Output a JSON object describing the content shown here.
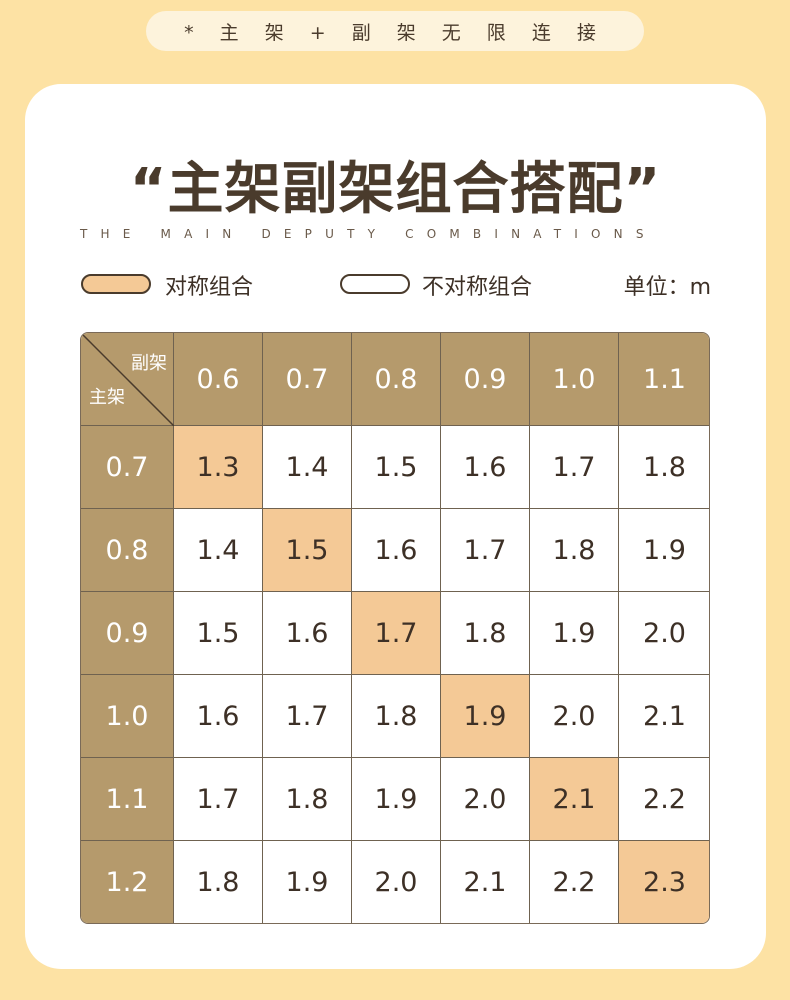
{
  "banner": {
    "text": "* 主 架 + 副 架 无 限 连 接"
  },
  "heading": {
    "title": "“主架副架组合搭配”",
    "subtitle": "THE MAIN DEPUTY COMBINATIONS"
  },
  "legend": {
    "symmetric_label": "对称组合",
    "asymmetric_label": "不对称组合",
    "unit_label": "单位：m",
    "symmetric_color": "#f4c996",
    "asymmetric_color": "#ffffff"
  },
  "table": {
    "corner_top": "副架",
    "corner_bottom": "主架",
    "columns": [
      "0.6",
      "0.7",
      "0.8",
      "0.9",
      "1.0",
      "1.1"
    ],
    "rows": [
      {
        "label": "0.7",
        "values": [
          "1.3",
          "1.4",
          "1.5",
          "1.6",
          "1.7",
          "1.8"
        ]
      },
      {
        "label": "0.8",
        "values": [
          "1.4",
          "1.5",
          "1.6",
          "1.7",
          "1.8",
          "1.9"
        ]
      },
      {
        "label": "0.9",
        "values": [
          "1.5",
          "1.6",
          "1.7",
          "1.8",
          "1.9",
          "2.0"
        ]
      },
      {
        "label": "1.0",
        "values": [
          "1.6",
          "1.7",
          "1.8",
          "1.9",
          "2.0",
          "2.1"
        ]
      },
      {
        "label": "1.1",
        "values": [
          "1.7",
          "1.8",
          "1.9",
          "2.0",
          "2.1",
          "2.2"
        ]
      },
      {
        "label": "1.2",
        "values": [
          "1.8",
          "1.9",
          "2.0",
          "2.1",
          "2.2",
          "2.3"
        ]
      }
    ],
    "header_color": "#b59a6c",
    "highlight_color": "#f4c996"
  }
}
